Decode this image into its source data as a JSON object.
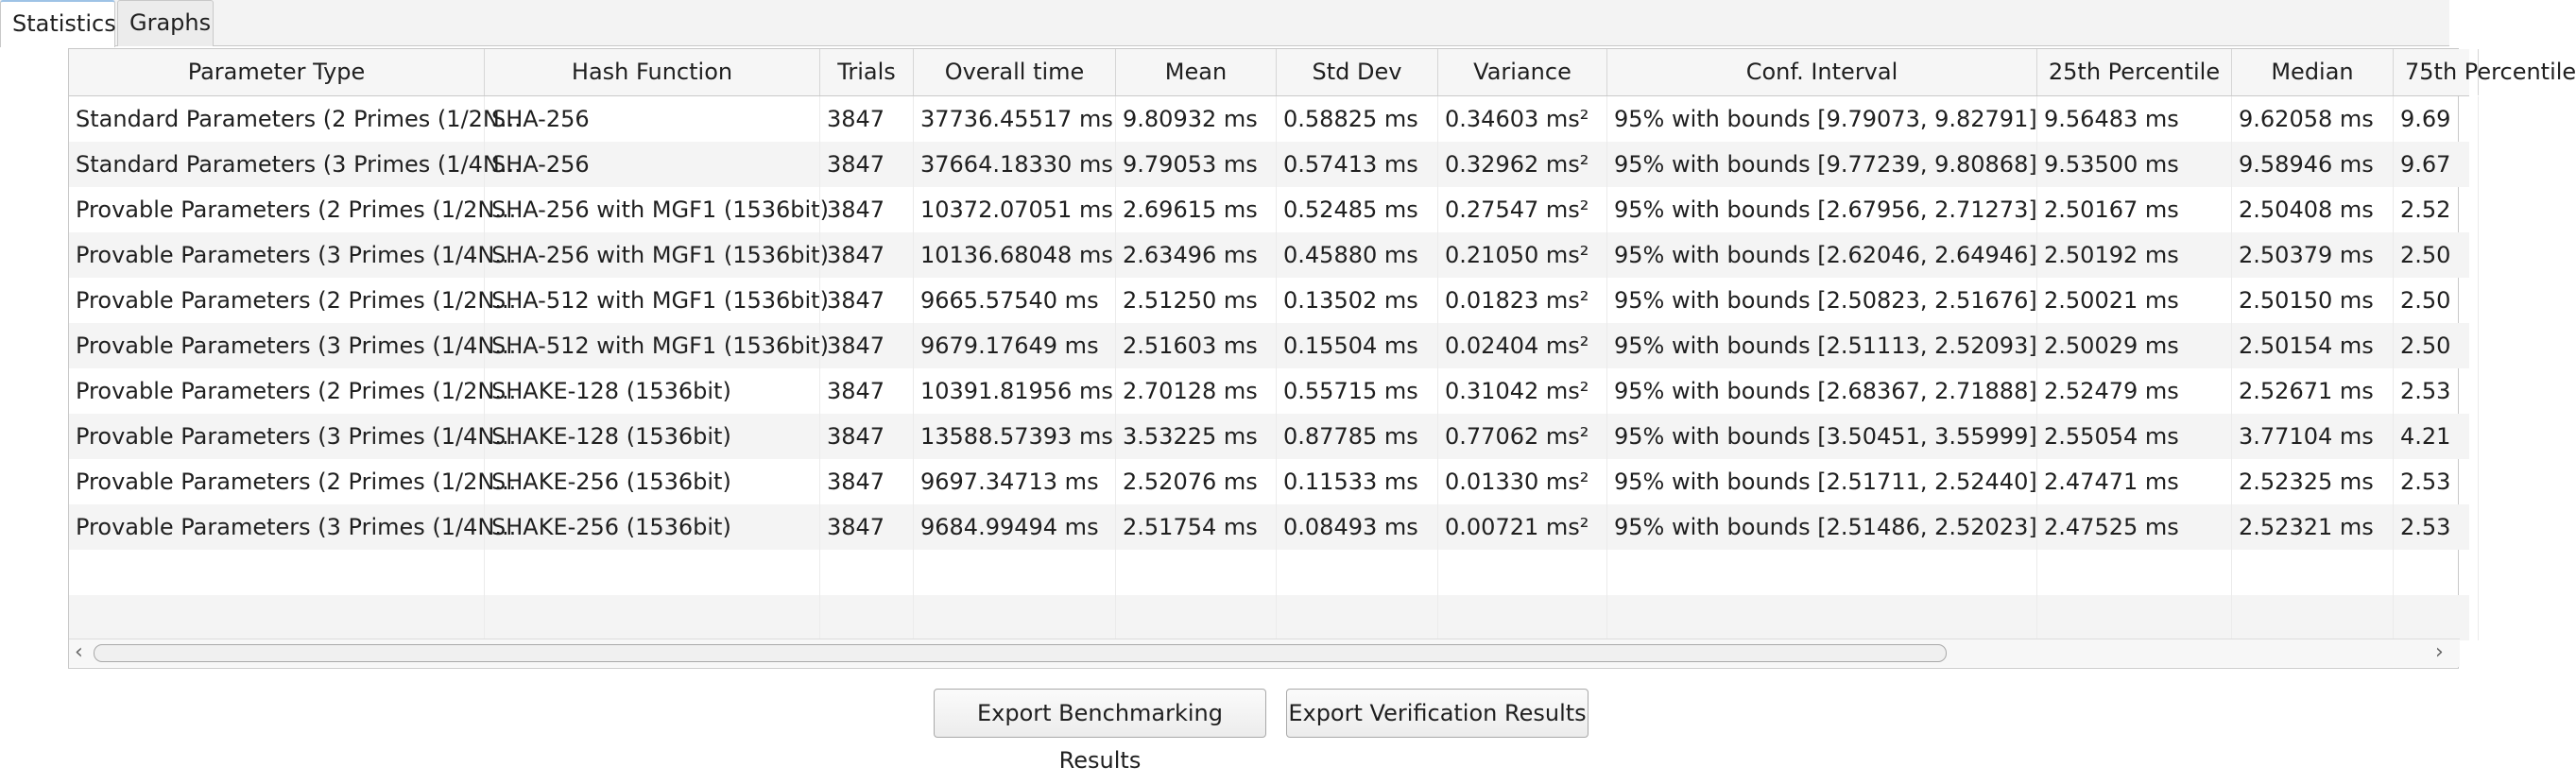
{
  "tabs": [
    {
      "label": "Statistics",
      "active": true
    },
    {
      "label": "Graphs",
      "active": false
    }
  ],
  "table": {
    "columns": [
      "Parameter Type",
      "Hash Function",
      "Trials",
      "Overall time",
      "Mean",
      "Std Dev",
      "Variance",
      "Conf. Interval",
      "25th Percentile",
      "Median",
      "75th Percentile"
    ],
    "rows": [
      [
        "Standard Parameters (2 Primes (1/2N...",
        "SHA-256",
        "3847",
        "37736.45517 ms",
        "9.80932 ms",
        "0.58825 ms",
        "0.34603 ms²",
        "95% with bounds [9.79073, 9.82791]",
        "9.56483 ms",
        "9.62058 ms",
        "9.69"
      ],
      [
        "Standard Parameters (3 Primes (1/4N...",
        "SHA-256",
        "3847",
        "37664.18330 ms",
        "9.79053 ms",
        "0.57413 ms",
        "0.32962 ms²",
        "95% with bounds [9.77239, 9.80868]",
        "9.53500 ms",
        "9.58946 ms",
        "9.67"
      ],
      [
        "Provable Parameters (2 Primes (1/2N...",
        "SHA-256 with MGF1 (1536bit)",
        "3847",
        "10372.07051 ms",
        "2.69615 ms",
        "0.52485 ms",
        "0.27547 ms²",
        "95% with bounds [2.67956, 2.71273]",
        "2.50167 ms",
        "2.50408 ms",
        "2.52"
      ],
      [
        "Provable Parameters (3 Primes (1/4N...",
        "SHA-256 with MGF1 (1536bit)",
        "3847",
        "10136.68048 ms",
        "2.63496 ms",
        "0.45880 ms",
        "0.21050 ms²",
        "95% with bounds [2.62046, 2.64946]",
        "2.50192 ms",
        "2.50379 ms",
        "2.50"
      ],
      [
        "Provable Parameters (2 Primes (1/2N...",
        "SHA-512 with MGF1 (1536bit)",
        "3847",
        "9665.57540 ms",
        "2.51250 ms",
        "0.13502 ms",
        "0.01823 ms²",
        "95% with bounds [2.50823, 2.51676]",
        "2.50021 ms",
        "2.50150 ms",
        "2.50"
      ],
      [
        "Provable Parameters (3 Primes (1/4N...",
        "SHA-512 with MGF1 (1536bit)",
        "3847",
        "9679.17649 ms",
        "2.51603 ms",
        "0.15504 ms",
        "0.02404 ms²",
        "95% with bounds [2.51113, 2.52093]",
        "2.50029 ms",
        "2.50154 ms",
        "2.50"
      ],
      [
        "Provable Parameters (2 Primes (1/2N...",
        "SHAKE-128 (1536bit)",
        "3847",
        "10391.81956 ms",
        "2.70128 ms",
        "0.55715 ms",
        "0.31042 ms²",
        "95% with bounds [2.68367, 2.71888]",
        "2.52479 ms",
        "2.52671 ms",
        "2.53"
      ],
      [
        "Provable Parameters (3 Primes (1/4N...",
        "SHAKE-128 (1536bit)",
        "3847",
        "13588.57393 ms",
        "3.53225 ms",
        "0.87785 ms",
        "0.77062 ms²",
        "95% with bounds [3.50451, 3.55999]",
        "2.55054 ms",
        "3.77104 ms",
        "4.21"
      ],
      [
        "Provable Parameters (2 Primes (1/2N...",
        "SHAKE-256 (1536bit)",
        "3847",
        "9697.34713 ms",
        "2.52076 ms",
        "0.11533 ms",
        "0.01330 ms²",
        "95% with bounds [2.51711, 2.52440]",
        "2.47471 ms",
        "2.52325 ms",
        "2.53"
      ],
      [
        "Provable Parameters (3 Primes (1/4N...",
        "SHAKE-256 (1536bit)",
        "3847",
        "9684.99494 ms",
        "2.51754 ms",
        "0.08493 ms",
        "0.00721 ms²",
        "95% with bounds [2.51486, 2.52023]",
        "2.47525 ms",
        "2.52321 ms",
        "2.53"
      ]
    ]
  },
  "buttons": {
    "export_benchmarking": "Export Benchmarking Results",
    "export_verification": "Export Verification Results"
  }
}
